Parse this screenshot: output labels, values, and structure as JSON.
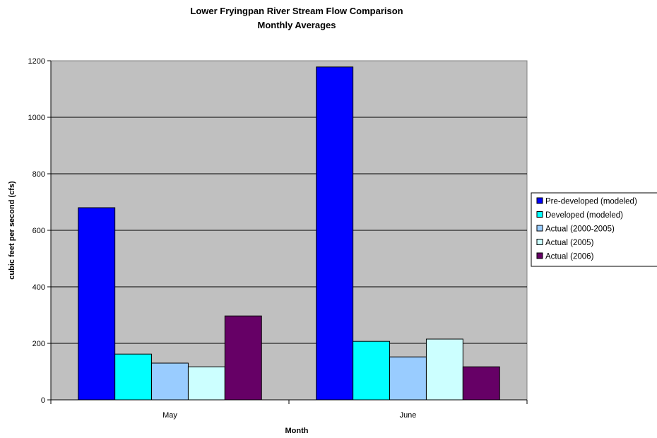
{
  "chart_data": {
    "type": "bar",
    "title": "Lower Fryingpan River Stream Flow Comparison",
    "subtitle": "Monthly Averages",
    "xlabel": "Month",
    "ylabel": "cubic feet per second (cfs)",
    "categories": [
      "May",
      "June"
    ],
    "ylim": [
      0,
      1200
    ],
    "yticks": [
      0,
      200,
      400,
      600,
      800,
      1000,
      1200
    ],
    "grid": true,
    "legend_position": "right",
    "plot_background": "#c0c0c0",
    "series": [
      {
        "name": "Pre-developed (modeled)",
        "color": "#0000ff",
        "values": [
          680,
          1178
        ]
      },
      {
        "name": "Developed (modeled)",
        "color": "#00ffff",
        "values": [
          162,
          207
        ]
      },
      {
        "name": "Actual (2000-2005)",
        "color": "#99ccff",
        "values": [
          130,
          152
        ]
      },
      {
        "name": "Actual (2005)",
        "color": "#ccffff",
        "values": [
          117,
          215
        ]
      },
      {
        "name": "Actual (2006)",
        "color": "#660066",
        "values": [
          297,
          117
        ]
      }
    ]
  }
}
